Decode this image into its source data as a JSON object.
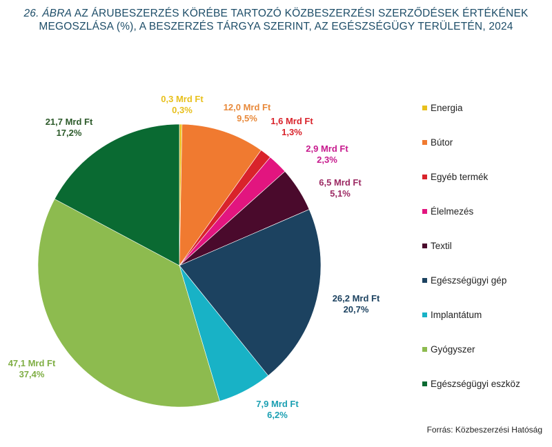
{
  "title": {
    "number": "26. ÁBRA",
    "line1_rest": " AZ ÁRUBESZERZÉS KÖRÉBE TARTOZÓ KÖZBESZERZÉSI SZERZŐDÉSEK ÉRTÉKÉNEK",
    "line2": "MEGOSZLÁSA (%), A BESZERZÉS TÁRGYA SZERINT, AZ EGÉSZSÉGÜGY TERÜLETÉN, 2024"
  },
  "source": "Forrás: Közbeszerzési Hatóság",
  "chart_data": {
    "type": "pie",
    "start_angle_deg": 0,
    "direction": "clockwise",
    "slices": [
      {
        "name": "Energia",
        "value": 0.3,
        "amount": "0,3 Mrd Ft",
        "percent": "0,3%",
        "color": "#e8c01c",
        "label_color": "#e8c01c"
      },
      {
        "name": "Bútor",
        "value": 9.5,
        "amount": "12,0 Mrd Ft",
        "percent": "9,5%",
        "color": "#f07a30",
        "label_color": "#e8893a"
      },
      {
        "name": "Egyéb termék",
        "value": 1.3,
        "amount": "1,6 Mrd Ft",
        "percent": "1,3%",
        "color": "#d9232b",
        "label_color": "#d9232b"
      },
      {
        "name": "Élelmezés",
        "value": 2.3,
        "amount": "2,9 Mrd Ft",
        "percent": "2,3%",
        "color": "#e2157f",
        "label_color": "#c7198d"
      },
      {
        "name": "Textil",
        "value": 5.1,
        "amount": "6,5 Mrd Ft",
        "percent": "5,1%",
        "color": "#4a0a2c",
        "label_color": "#9c2a63"
      },
      {
        "name": "Egészségügyi gép",
        "value": 20.7,
        "amount": "26,2 Mrd Ft",
        "percent": "20,7%",
        "color": "#1c4260",
        "label_color": "#1c4260"
      },
      {
        "name": "Implantátum",
        "value": 6.2,
        "amount": "7,9 Mrd Ft",
        "percent": "6,2%",
        "color": "#18b2c6",
        "label_color": "#1a9fb2"
      },
      {
        "name": "Gyógyszer",
        "value": 37.4,
        "amount": "47,1 Mrd Ft",
        "percent": "37,4%",
        "color": "#8dbb4f",
        "label_color": "#7fae44"
      },
      {
        "name": "Egészségügyi eszköz",
        "value": 17.2,
        "amount": "21,7 Mrd Ft",
        "percent": "17,2%",
        "color": "#0a6a32",
        "label_color": "#2c5a2a"
      }
    ],
    "legend": {
      "position": "right"
    }
  }
}
